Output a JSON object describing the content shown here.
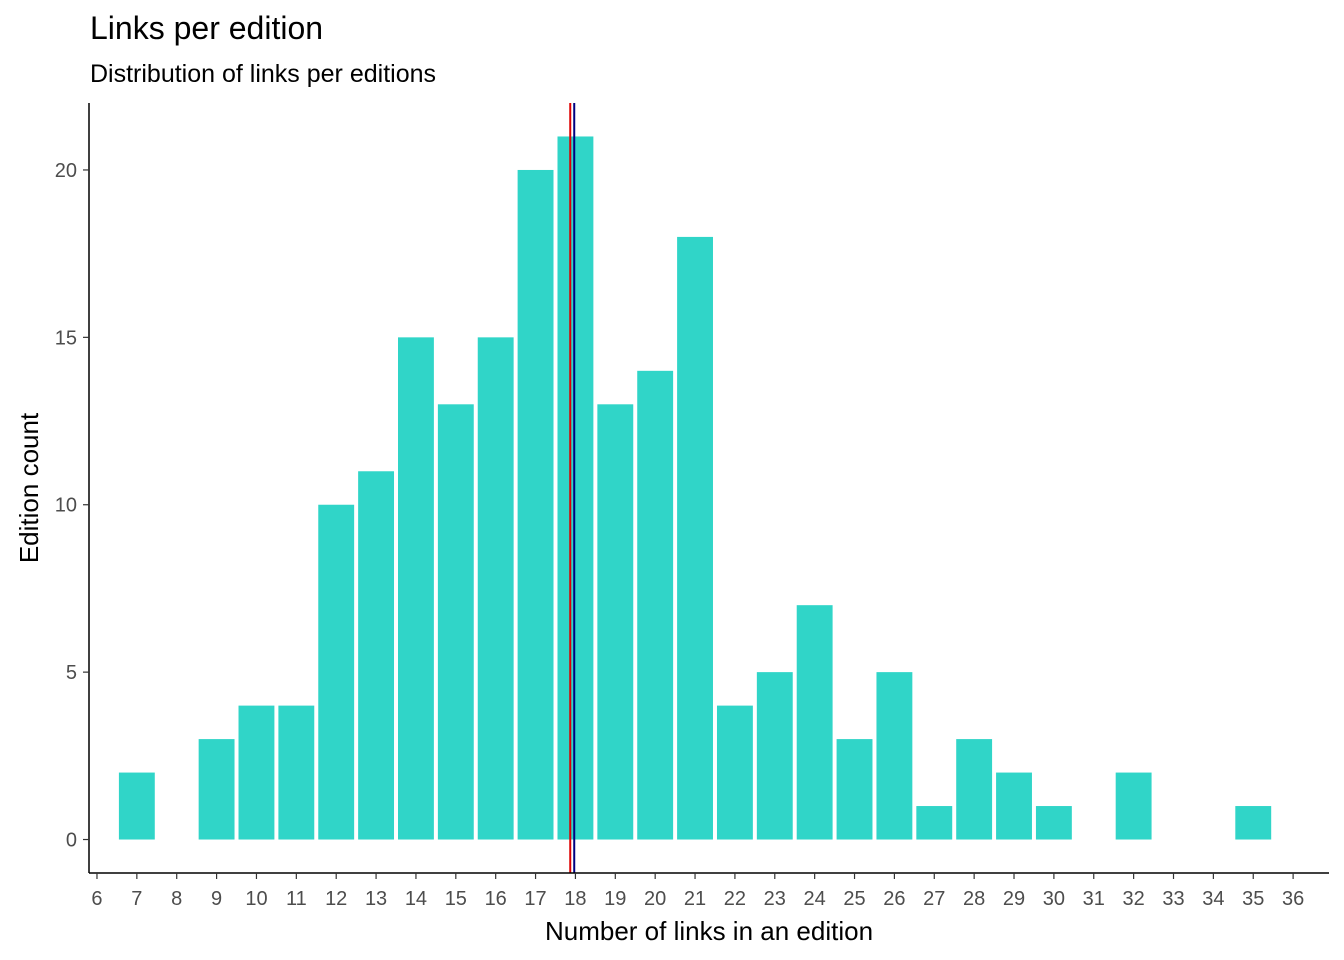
{
  "title": "Links per edition",
  "subtitle": "Distribution of links per editions",
  "chart_data": {
    "type": "bar",
    "title": "Links per edition",
    "subtitle": "Distribution of links per editions",
    "xlabel": "Number of links in an edition",
    "ylabel": "Edition count",
    "x": [
      7,
      9,
      10,
      11,
      12,
      13,
      14,
      15,
      16,
      17,
      18,
      19,
      20,
      21,
      22,
      23,
      24,
      25,
      26,
      27,
      28,
      29,
      30,
      32,
      35
    ],
    "values": [
      2,
      3,
      4,
      4,
      10,
      11,
      15,
      13,
      15,
      20,
      21,
      13,
      14,
      18,
      4,
      5,
      7,
      3,
      5,
      1,
      3,
      2,
      1,
      2,
      1
    ],
    "x_ticks": [
      6,
      7,
      8,
      9,
      10,
      11,
      12,
      13,
      14,
      15,
      16,
      17,
      18,
      19,
      20,
      21,
      22,
      23,
      24,
      25,
      26,
      27,
      28,
      29,
      30,
      31,
      32,
      33,
      34,
      35,
      36
    ],
    "y_ticks": [
      0,
      5,
      10,
      15,
      20
    ],
    "xlim": [
      5.8,
      36.9
    ],
    "ylim": [
      -1,
      22
    ],
    "grid": false,
    "bar_color": "#30D5C8",
    "reference_lines": [
      {
        "x": 17.87,
        "color": "#DD0000"
      },
      {
        "x": 17.97,
        "color": "#000080"
      }
    ]
  }
}
